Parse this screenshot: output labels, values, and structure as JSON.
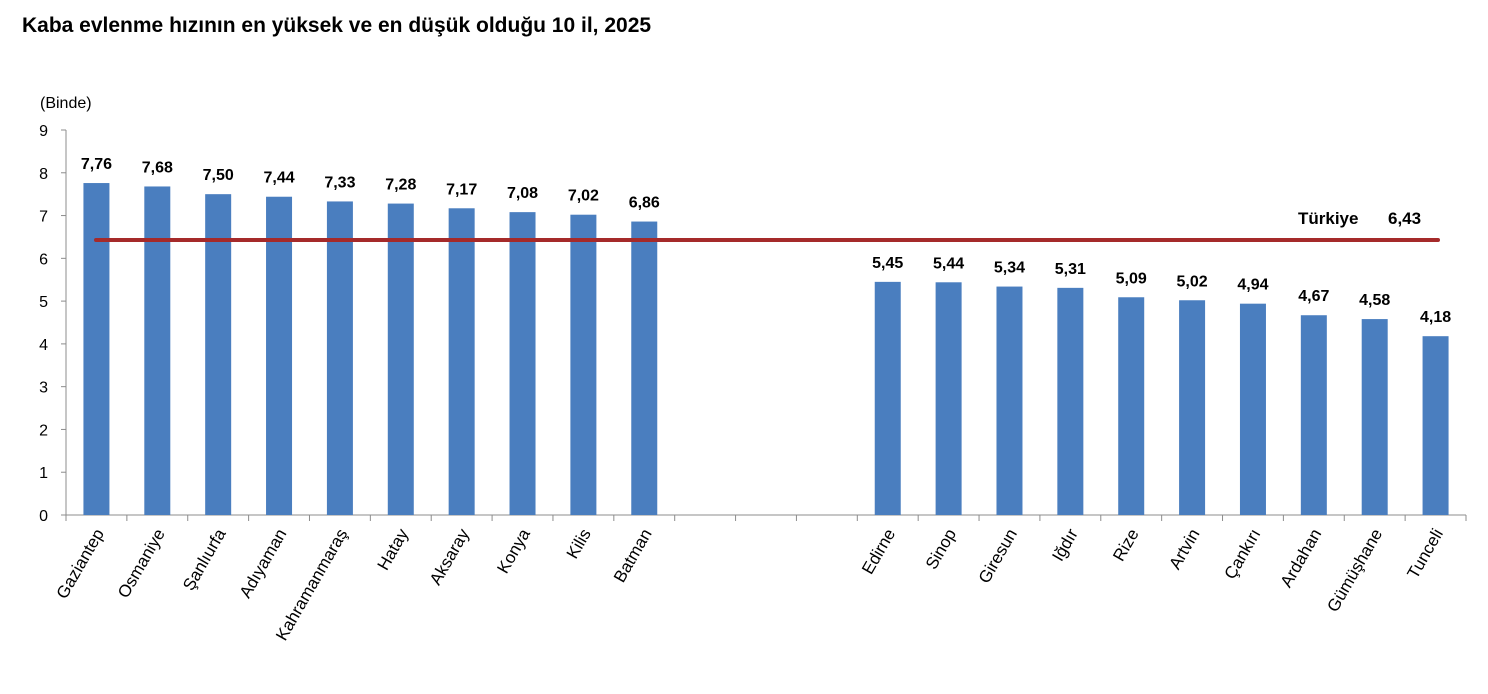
{
  "chart_data": {
    "type": "bar",
    "title": "Kaba evlenme hızının en yüksek ve en düşük olduğu 10 il, 2025",
    "ylabel": "(Binde)",
    "xlabel": "",
    "ylim": [
      0,
      9
    ],
    "yticks": [
      "0",
      "1",
      "2",
      "3",
      "4",
      "5",
      "6",
      "7",
      "8",
      "9"
    ],
    "grid": false,
    "bar_color": "#4a7ebf",
    "reference_line": {
      "label": "Türkiye",
      "value": 6.43,
      "value_label": "6,43",
      "color": "#a52a2a"
    },
    "categories": [
      "Gaziantep",
      "Osmaniye",
      "Şanlıurfa",
      "Adıyaman",
      "Kahramanmaraş",
      "Hatay",
      "Aksaray",
      "Konya",
      "Kilis",
      "Batman",
      "",
      "",
      "",
      "Edirne",
      "Sinop",
      "Giresun",
      "Iğdır",
      "Rize",
      "Artvin",
      "Çankırı",
      "Ardahan",
      "Gümüşhane",
      "Tunceli"
    ],
    "values": [
      7.76,
      7.68,
      7.5,
      7.44,
      7.33,
      7.28,
      7.17,
      7.08,
      7.02,
      6.86,
      null,
      null,
      null,
      5.45,
      5.44,
      5.34,
      5.31,
      5.09,
      5.02,
      4.94,
      4.67,
      4.58,
      4.18
    ],
    "value_labels": [
      "7,76",
      "7,68",
      "7,50",
      "7,44",
      "7,33",
      "7,28",
      "7,17",
      "7,08",
      "7,02",
      "6,86",
      "",
      "",
      "",
      "5,45",
      "5,44",
      "5,34",
      "5,31",
      "5,09",
      "5,02",
      "4,94",
      "4,67",
      "4,58",
      "4,18"
    ]
  }
}
